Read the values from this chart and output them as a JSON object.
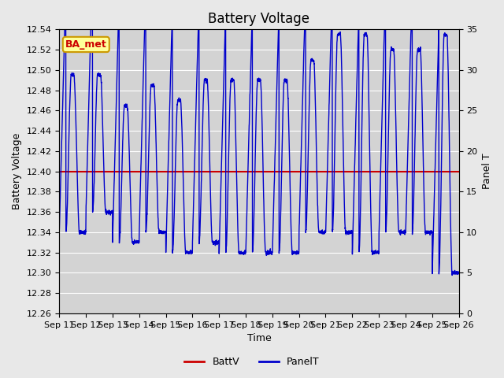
{
  "title": "Battery Voltage",
  "xlabel": "Time",
  "ylabel_left": "Battery Voltage",
  "ylabel_right": "Panel T",
  "ylim_left": [
    12.26,
    12.54
  ],
  "ylim_right": [
    0,
    35
  ],
  "yticks_left": [
    12.26,
    12.28,
    12.3,
    12.32,
    12.34,
    12.36,
    12.38,
    12.4,
    12.42,
    12.44,
    12.46,
    12.48,
    12.5,
    12.52,
    12.54
  ],
  "yticks_right": [
    0,
    5,
    10,
    15,
    20,
    25,
    30,
    35
  ],
  "x_labels": [
    "Sep 11",
    "Sep 12",
    "Sep 13",
    "Sep 14",
    "Sep 15",
    "Sep 16",
    "Sep 17",
    "Sep 18",
    "Sep 19",
    "Sep 20",
    "Sep 21",
    "Sep 22",
    "Sep 23",
    "Sep 24",
    "Sep 25",
    "Sep 26"
  ],
  "battv_value": 12.4,
  "battv_color": "#cc0000",
  "panelt_color": "#0000cc",
  "bg_color": "#e8e8e8",
  "plot_bg_color": "#d3d3d3",
  "annotation_text": "BA_met",
  "annotation_bg": "#ffff99",
  "annotation_border": "#cc9900",
  "annotation_text_color": "#cc0000",
  "legend_battv": "BattV",
  "legend_panelt": "PanelT",
  "title_fontsize": 12,
  "label_fontsize": 9,
  "tick_fontsize": 8,
  "n_days": 15,
  "pts_per_day": 200,
  "day_peaks": [
    12.495,
    12.495,
    12.465,
    12.485,
    12.47,
    12.49,
    12.49,
    12.49,
    12.49,
    12.51,
    12.535,
    12.535,
    12.52,
    12.52,
    12.535
  ],
  "day_mins": [
    12.34,
    12.36,
    12.33,
    12.34,
    12.32,
    12.33,
    12.32,
    12.32,
    12.32,
    12.34,
    12.34,
    12.32,
    12.34,
    12.34,
    12.3
  ]
}
